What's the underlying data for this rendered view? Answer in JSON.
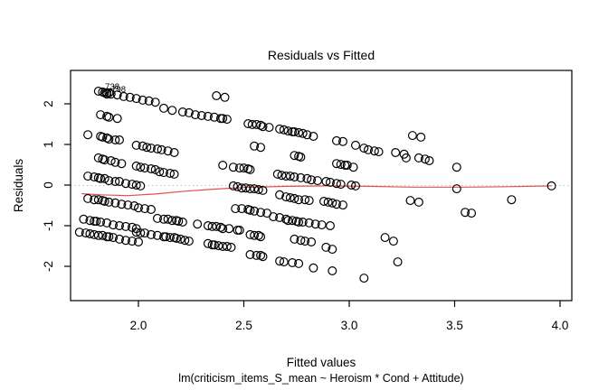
{
  "chart_data": {
    "type": "scatter",
    "title": "Residuals vs Fitted",
    "xlabel": "Fitted values",
    "ylabel": "Residuals",
    "subtitle": "lm(criticism_items_S_mean ~ Heroism * Cond + Attitude)",
    "xlim": [
      1.678,
      4.056
    ],
    "ylim": [
      -2.844,
      2.822
    ],
    "x_ticks": {
      "values": [
        2.0,
        2.5,
        3.0,
        3.5,
        4.0
      ],
      "labels": [
        "2.0",
        "2.5",
        "3.0",
        "3.5",
        "4.0"
      ]
    },
    "y_ticks": {
      "values": [
        -2,
        -1,
        0,
        1,
        2
      ],
      "labels": [
        "-2",
        "-1",
        "0",
        "1",
        "2"
      ]
    },
    "grid": false,
    "legend": null,
    "marker": {
      "shape": "open-circle",
      "color": "#000000"
    },
    "zero_line": {
      "y": 0,
      "style": "dotted",
      "color": "#c3c3c3"
    },
    "smoother": {
      "color": "#e74c4c",
      "points": [
        [
          1.73,
          -0.21
        ],
        [
          1.82,
          -0.24
        ],
        [
          1.95,
          -0.26
        ],
        [
          2.08,
          -0.22
        ],
        [
          2.22,
          -0.15
        ],
        [
          2.36,
          -0.1
        ],
        [
          2.5,
          -0.06
        ],
        [
          2.7,
          -0.03
        ],
        [
          2.9,
          -0.02
        ],
        [
          3.1,
          -0.03
        ],
        [
          3.3,
          -0.05
        ],
        [
          3.55,
          -0.05
        ],
        [
          3.75,
          -0.04
        ],
        [
          3.96,
          -0.02
        ]
      ]
    },
    "point_labels": [
      {
        "text": "738",
        "x": 1.876,
        "y": 2.42
      },
      {
        "text": "798",
        "x": 1.906,
        "y": 2.36
      }
    ],
    "points": [
      [
        1.81,
        2.31
      ],
      [
        1.83,
        2.29
      ],
      [
        1.85,
        2.27
      ],
      [
        1.86,
        2.27
      ],
      [
        1.87,
        2.24
      ],
      [
        1.9,
        2.22
      ],
      [
        1.93,
        2.18
      ],
      [
        1.96,
        2.16
      ],
      [
        1.99,
        2.13
      ],
      [
        2.02,
        2.09
      ],
      [
        2.05,
        2.07
      ],
      [
        2.08,
        2.04
      ],
      [
        1.84,
        2.27
      ],
      [
        1.85,
        2.24
      ],
      [
        2.37,
        2.2
      ],
      [
        2.41,
        2.16
      ],
      [
        1.82,
        1.73
      ],
      [
        1.85,
        1.69
      ],
      [
        1.86,
        1.67
      ],
      [
        1.9,
        1.64
      ],
      [
        2.12,
        1.89
      ],
      [
        2.16,
        1.84
      ],
      [
        2.21,
        1.8
      ],
      [
        2.24,
        1.78
      ],
      [
        2.27,
        1.73
      ],
      [
        2.3,
        1.71
      ],
      [
        2.33,
        1.69
      ],
      [
        2.36,
        1.67
      ],
      [
        2.39,
        1.64
      ],
      [
        2.4,
        1.64
      ],
      [
        2.42,
        1.62
      ],
      [
        2.52,
        1.51
      ],
      [
        2.54,
        1.49
      ],
      [
        2.56,
        1.49
      ],
      [
        2.58,
        1.47
      ],
      [
        2.59,
        1.44
      ],
      [
        2.62,
        1.42
      ],
      [
        2.67,
        1.38
      ],
      [
        2.69,
        1.36
      ],
      [
        2.71,
        1.33
      ],
      [
        2.73,
        1.31
      ],
      [
        2.74,
        1.31
      ],
      [
        2.76,
        1.29
      ],
      [
        2.78,
        1.27
      ],
      [
        2.8,
        1.24
      ],
      [
        2.83,
        1.2
      ],
      [
        2.94,
        1.09
      ],
      [
        2.97,
        1.07
      ],
      [
        3.03,
        0.98
      ],
      [
        3.07,
        0.91
      ],
      [
        3.09,
        0.87
      ],
      [
        3.12,
        0.84
      ],
      [
        3.14,
        0.82
      ],
      [
        3.22,
        0.8
      ],
      [
        3.26,
        0.76
      ],
      [
        3.3,
        1.22
      ],
      [
        3.34,
        1.18
      ],
      [
        1.76,
        1.24
      ],
      [
        1.82,
        1.2
      ],
      [
        1.83,
        1.18
      ],
      [
        1.85,
        1.16
      ],
      [
        1.86,
        1.13
      ],
      [
        1.89,
        1.11
      ],
      [
        1.91,
        1.11
      ],
      [
        1.99,
        0.98
      ],
      [
        2.02,
        0.96
      ],
      [
        2.04,
        0.93
      ],
      [
        2.06,
        0.91
      ],
      [
        2.09,
        0.89
      ],
      [
        2.11,
        0.87
      ],
      [
        2.14,
        0.84
      ],
      [
        2.17,
        0.8
      ],
      [
        2.55,
        0.96
      ],
      [
        2.58,
        0.93
      ],
      [
        2.74,
        0.73
      ],
      [
        2.76,
        0.71
      ],
      [
        2.77,
        0.69
      ],
      [
        1.81,
        0.67
      ],
      [
        1.83,
        0.64
      ],
      [
        1.84,
        0.62
      ],
      [
        1.87,
        0.6
      ],
      [
        1.89,
        0.56
      ],
      [
        1.92,
        0.53
      ],
      [
        1.99,
        0.47
      ],
      [
        2.01,
        0.44
      ],
      [
        2.03,
        0.42
      ],
      [
        2.06,
        0.4
      ],
      [
        2.08,
        0.38
      ],
      [
        2.1,
        0.33
      ],
      [
        2.12,
        0.31
      ],
      [
        2.15,
        0.29
      ],
      [
        2.17,
        0.27
      ],
      [
        2.4,
        0.49
      ],
      [
        2.45,
        0.44
      ],
      [
        2.48,
        0.42
      ],
      [
        2.5,
        0.42
      ],
      [
        2.52,
        0.4
      ],
      [
        2.53,
        0.38
      ],
      [
        2.66,
        0.27
      ],
      [
        2.68,
        0.24
      ],
      [
        2.7,
        0.22
      ],
      [
        2.72,
        0.22
      ],
      [
        2.74,
        0.2
      ],
      [
        2.77,
        0.18
      ],
      [
        2.8,
        0.16
      ],
      [
        2.82,
        0.13
      ],
      [
        2.85,
        0.11
      ],
      [
        2.89,
        0.09
      ],
      [
        2.91,
        0.07
      ],
      [
        2.94,
        0.04
      ],
      [
        2.96,
        0.02
      ],
      [
        3.01,
        0.0
      ],
      [
        3.03,
        -0.02
      ],
      [
        2.94,
        0.53
      ],
      [
        2.96,
        0.51
      ],
      [
        2.98,
        0.49
      ],
      [
        2.99,
        0.49
      ],
      [
        3.02,
        0.44
      ],
      [
        3.27,
        0.67
      ],
      [
        3.33,
        0.67
      ],
      [
        3.36,
        0.64
      ],
      [
        3.38,
        0.6
      ],
      [
        3.51,
        0.44
      ],
      [
        1.76,
        0.22
      ],
      [
        1.79,
        0.2
      ],
      [
        1.81,
        0.18
      ],
      [
        1.82,
        0.16
      ],
      [
        1.84,
        0.16
      ],
      [
        1.86,
        0.11
      ],
      [
        1.89,
        0.09
      ],
      [
        1.91,
        0.09
      ],
      [
        1.94,
        0.04
      ],
      [
        1.97,
        0.02
      ],
      [
        1.99,
        0.0
      ],
      [
        2.01,
        -0.02
      ],
      [
        2.45,
        -0.02
      ],
      [
        2.47,
        -0.04
      ],
      [
        2.49,
        -0.07
      ],
      [
        2.51,
        -0.07
      ],
      [
        2.53,
        -0.09
      ],
      [
        2.55,
        -0.09
      ],
      [
        2.57,
        -0.11
      ],
      [
        2.59,
        -0.13
      ],
      [
        3.96,
        -0.02
      ],
      [
        3.51,
        -0.09
      ],
      [
        1.76,
        -0.33
      ],
      [
        1.79,
        -0.36
      ],
      [
        1.81,
        -0.36
      ],
      [
        1.83,
        -0.38
      ],
      [
        1.84,
        -0.4
      ],
      [
        1.86,
        -0.42
      ],
      [
        1.89,
        -0.44
      ],
      [
        1.92,
        -0.47
      ],
      [
        1.95,
        -0.49
      ],
      [
        1.98,
        -0.51
      ],
      [
        2.0,
        -0.56
      ],
      [
        2.03,
        -0.58
      ],
      [
        2.06,
        -0.6
      ],
      [
        2.67,
        -0.24
      ],
      [
        2.7,
        -0.29
      ],
      [
        2.72,
        -0.31
      ],
      [
        2.74,
        -0.33
      ],
      [
        2.76,
        -0.36
      ],
      [
        2.79,
        -0.36
      ],
      [
        2.81,
        -0.38
      ],
      [
        2.88,
        -0.4
      ],
      [
        2.9,
        -0.42
      ],
      [
        2.92,
        -0.44
      ],
      [
        2.94,
        -0.47
      ],
      [
        2.97,
        -0.49
      ],
      [
        3.29,
        -0.38
      ],
      [
        3.33,
        -0.42
      ],
      [
        3.77,
        -0.36
      ],
      [
        2.46,
        -0.58
      ],
      [
        2.49,
        -0.58
      ],
      [
        2.52,
        -0.6
      ],
      [
        2.53,
        -0.62
      ],
      [
        2.55,
        -0.64
      ],
      [
        2.58,
        -0.67
      ],
      [
        2.61,
        -0.69
      ],
      [
        1.74,
        -0.84
      ],
      [
        1.77,
        -0.87
      ],
      [
        1.79,
        -0.89
      ],
      [
        1.8,
        -0.89
      ],
      [
        1.82,
        -0.91
      ],
      [
        1.85,
        -0.93
      ],
      [
        1.88,
        -0.98
      ],
      [
        1.91,
        -1.0
      ],
      [
        1.94,
        -1.02
      ],
      [
        1.97,
        -1.04
      ],
      [
        1.99,
        -1.07
      ],
      [
        2.09,
        -0.82
      ],
      [
        2.12,
        -0.84
      ],
      [
        2.14,
        -0.84
      ],
      [
        2.16,
        -0.87
      ],
      [
        2.18,
        -0.87
      ],
      [
        2.19,
        -0.89
      ],
      [
        2.21,
        -0.91
      ],
      [
        2.28,
        -0.96
      ],
      [
        2.33,
        -1.0
      ],
      [
        2.35,
        -1.02
      ],
      [
        2.37,
        -1.02
      ],
      [
        2.39,
        -1.04
      ],
      [
        2.4,
        -1.07
      ],
      [
        2.43,
        -1.07
      ],
      [
        2.47,
        -1.11
      ],
      [
        2.64,
        -0.78
      ],
      [
        2.67,
        -0.8
      ],
      [
        2.7,
        -0.84
      ],
      [
        2.71,
        -0.87
      ],
      [
        2.73,
        -0.87
      ],
      [
        2.75,
        -0.89
      ],
      [
        2.76,
        -0.91
      ],
      [
        2.78,
        -0.91
      ],
      [
        2.81,
        -0.93
      ],
      [
        2.84,
        -0.96
      ],
      [
        2.87,
        -0.98
      ],
      [
        2.91,
        -1.0
      ],
      [
        1.99,
        -1.16
      ],
      [
        2.01,
        -1.18
      ],
      [
        2.03,
        -1.18
      ],
      [
        2.06,
        -1.22
      ],
      [
        2.09,
        -1.24
      ],
      [
        2.12,
        -1.27
      ],
      [
        2.13,
        -1.27
      ],
      [
        2.15,
        -1.29
      ],
      [
        2.17,
        -1.29
      ],
      [
        2.18,
        -1.31
      ],
      [
        2.2,
        -1.33
      ],
      [
        2.22,
        -1.36
      ],
      [
        2.24,
        -1.38
      ],
      [
        2.33,
        -1.44
      ],
      [
        2.35,
        -1.47
      ],
      [
        2.36,
        -1.47
      ],
      [
        2.38,
        -1.49
      ],
      [
        2.4,
        -1.51
      ],
      [
        2.42,
        -1.51
      ],
      [
        2.44,
        -1.53
      ],
      [
        1.72,
        -1.16
      ],
      [
        1.75,
        -1.18
      ],
      [
        1.77,
        -1.2
      ],
      [
        1.79,
        -1.22
      ],
      [
        1.81,
        -1.24
      ],
      [
        1.83,
        -1.24
      ],
      [
        1.85,
        -1.27
      ],
      [
        1.86,
        -1.27
      ],
      [
        1.88,
        -1.29
      ],
      [
        1.91,
        -1.33
      ],
      [
        1.94,
        -1.36
      ],
      [
        1.97,
        -1.38
      ],
      [
        2.0,
        -1.4
      ],
      [
        2.48,
        -1.11
      ],
      [
        2.53,
        -1.22
      ],
      [
        2.55,
        -1.24
      ],
      [
        2.57,
        -1.24
      ],
      [
        2.58,
        -1.27
      ],
      [
        2.74,
        -1.33
      ],
      [
        2.77,
        -1.36
      ],
      [
        2.79,
        -1.38
      ],
      [
        2.82,
        -1.4
      ],
      [
        3.17,
        -1.29
      ],
      [
        3.21,
        -1.38
      ],
      [
        2.89,
        -1.53
      ],
      [
        2.92,
        -1.58
      ],
      [
        2.53,
        -1.71
      ],
      [
        2.56,
        -1.73
      ],
      [
        2.58,
        -1.73
      ],
      [
        2.59,
        -1.76
      ],
      [
        2.67,
        -1.87
      ],
      [
        2.69,
        -1.89
      ],
      [
        2.73,
        -1.91
      ],
      [
        2.76,
        -1.93
      ],
      [
        2.83,
        -2.04
      ],
      [
        2.92,
        -2.11
      ],
      [
        3.07,
        -2.29
      ],
      [
        3.23,
        -1.89
      ],
      [
        3.55,
        -0.67
      ],
      [
        3.58,
        -0.69
      ]
    ]
  }
}
